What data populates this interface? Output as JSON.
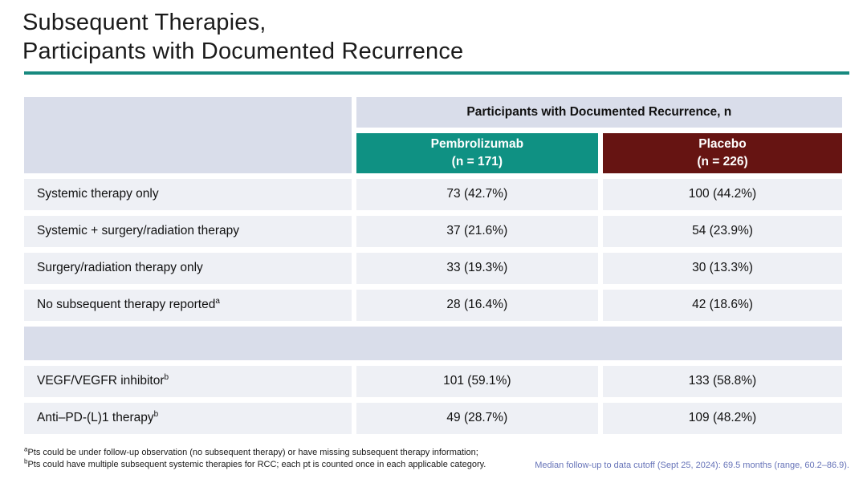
{
  "slide": {
    "title_line1": "Subsequent Therapies,",
    "title_line2": "Participants with Documented Recurrence"
  },
  "table": {
    "group_header": "Participants with Documented Recurrence, n",
    "columns": [
      {
        "name": "Pembrolizumab",
        "n": "(n = 171)"
      },
      {
        "name": "Placebo",
        "n": "(n = 226)"
      }
    ],
    "rows": [
      {
        "label": "Systemic therapy only",
        "sup": "",
        "pembrolizumab": "73 (42.7%)",
        "placebo": "100 (44.2%)"
      },
      {
        "label": "Systemic + surgery/radiation therapy",
        "sup": "",
        "pembrolizumab": "37 (21.6%)",
        "placebo": "54 (23.9%)"
      },
      {
        "label": "Surgery/radiation therapy only",
        "sup": "",
        "pembrolizumab": "33 (19.3%)",
        "placebo": "30 (13.3%)"
      },
      {
        "label": "No subsequent therapy reported",
        "sup": "a",
        "pembrolizumab": "28 (16.4%)",
        "placebo": "42 (18.6%)"
      },
      {
        "label": "VEGF/VEGFR inhibitor",
        "sup": "b",
        "pembrolizumab": "101 (59.1%)",
        "placebo": "133 (58.8%)"
      },
      {
        "label": "Anti–PD-(L)1 therapy",
        "sup": "b",
        "pembrolizumab": "49 (28.7%)",
        "placebo": "109 (48.2%)"
      }
    ]
  },
  "footnotes": {
    "a_sup": "a",
    "a_text": "Pts could be under follow-up observation (no subsequent therapy) or have missing subsequent therapy information;",
    "b_sup": "b",
    "b_text": "Pts could have multiple subsequent systemic therapies for RCC; each pt is counted once in each applicable category.",
    "median_note": "Median follow-up to data cutoff (Sept 25, 2024): 69.5 months (range, 60.2–86.9)."
  },
  "colors": {
    "accent-teal": "#0F9183",
    "accent-maroon": "#661412",
    "rule-teal": "#17897F",
    "band-gray": "#D9DDEA",
    "row-gray": "#EEF0F5",
    "note-blue": "#6673B8"
  }
}
